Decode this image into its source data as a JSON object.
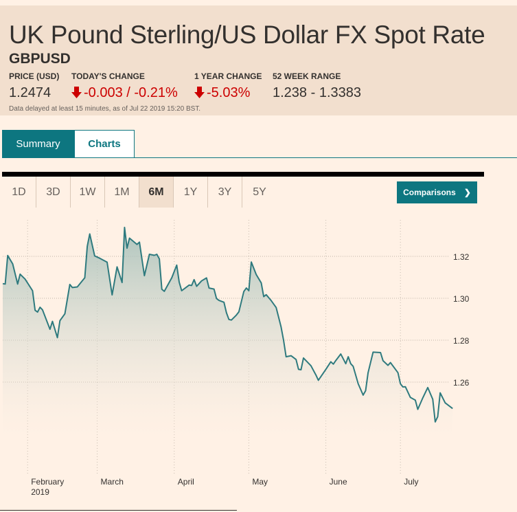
{
  "header": {
    "title": "UK Pound Sterling/US Dollar FX Spot Rate",
    "symbol": "GBPUSD",
    "stats": [
      {
        "label": "PRICE (USD)",
        "value": "1.2474"
      },
      {
        "label": "TODAY'S CHANGE",
        "value": "-0.003 / -0.21%",
        "direction": "down"
      },
      {
        "label": "1 YEAR CHANGE",
        "value": "-5.03%",
        "direction": "down"
      },
      {
        "label": "52 WEEK RANGE",
        "value": "1.238 - 1.3383"
      }
    ],
    "note": "Data delayed at least 15 minutes, as of Jul 22 2019 15:20 BST."
  },
  "tabs": [
    {
      "label": "Summary",
      "active": true
    },
    {
      "label": "Charts",
      "active": false
    }
  ],
  "ranges": [
    "1D",
    "3D",
    "1W",
    "1M",
    "6M",
    "1Y",
    "3Y",
    "5Y"
  ],
  "active_range": "6M",
  "comparisons_label": "Comparisons",
  "colors": {
    "accent": "#0d7680",
    "negative": "#cc0000",
    "header_bg": "#f2dfce",
    "page_bg": "#fff1e5",
    "line": "#2e7a7e"
  },
  "chart_data": {
    "type": "area",
    "ylim": [
      1.236,
      1.336
    ],
    "grid": true,
    "yticks": [
      "1.26",
      "1.28",
      "1.30",
      "1.32"
    ],
    "xticks": [
      {
        "date": "2019-02-01",
        "label": "February",
        "sub": "2019"
      },
      {
        "date": "2019-03-01",
        "label": "March"
      },
      {
        "date": "2019-04-01",
        "label": "April"
      },
      {
        "date": "2019-05-01",
        "label": "May"
      },
      {
        "date": "2019-06-01",
        "label": "June"
      },
      {
        "date": "2019-07-01",
        "label": "July"
      }
    ],
    "points": [
      [
        "2019-01-22",
        1.307
      ],
      [
        "2019-01-23",
        1.3068
      ],
      [
        "2019-01-24",
        1.3204
      ],
      [
        "2019-01-26",
        1.3164
      ],
      [
        "2019-01-28",
        1.3068
      ],
      [
        "2019-01-29",
        1.3115
      ],
      [
        "2019-01-31",
        1.3091
      ],
      [
        "2019-02-03",
        1.3036
      ],
      [
        "2019-02-04",
        1.2943
      ],
      [
        "2019-02-05",
        1.2934
      ],
      [
        "2019-02-06",
        1.2957
      ],
      [
        "2019-02-07",
        1.2945
      ],
      [
        "2019-02-10",
        1.2852
      ],
      [
        "2019-02-11",
        1.289
      ],
      [
        "2019-02-13",
        1.2812
      ],
      [
        "2019-02-14",
        1.2893
      ],
      [
        "2019-02-16",
        1.2926
      ],
      [
        "2019-02-18",
        1.3066
      ],
      [
        "2019-02-19",
        1.3051
      ],
      [
        "2019-02-21",
        1.3054
      ],
      [
        "2019-02-24",
        1.3098
      ],
      [
        "2019-02-25",
        1.3248
      ],
      [
        "2019-02-26",
        1.3307
      ],
      [
        "2019-02-28",
        1.3202
      ],
      [
        "2019-03-02",
        1.3191
      ],
      [
        "2019-03-05",
        1.3172
      ],
      [
        "2019-03-07",
        1.3016
      ],
      [
        "2019-03-09",
        1.315
      ],
      [
        "2019-03-11",
        1.3075
      ],
      [
        "2019-03-12",
        1.3338
      ],
      [
        "2019-03-13",
        1.3239
      ],
      [
        "2019-03-14",
        1.3287
      ],
      [
        "2019-03-17",
        1.3257
      ],
      [
        "2019-03-18",
        1.3268
      ],
      [
        "2019-03-20",
        1.3108
      ],
      [
        "2019-03-22",
        1.321
      ],
      [
        "2019-03-24",
        1.3205
      ],
      [
        "2019-03-25",
        1.321
      ],
      [
        "2019-03-26",
        1.3188
      ],
      [
        "2019-03-27",
        1.3043
      ],
      [
        "2019-03-28",
        1.3033
      ],
      [
        "2019-03-31",
        1.3098
      ],
      [
        "2019-04-02",
        1.3158
      ],
      [
        "2019-04-03",
        1.3077
      ],
      [
        "2019-04-04",
        1.3036
      ],
      [
        "2019-04-07",
        1.3063
      ],
      [
        "2019-04-08",
        1.3061
      ],
      [
        "2019-04-09",
        1.3089
      ],
      [
        "2019-04-10",
        1.3057
      ],
      [
        "2019-04-12",
        1.3083
      ],
      [
        "2019-04-14",
        1.3097
      ],
      [
        "2019-04-15",
        1.3049
      ],
      [
        "2019-04-17",
        1.3044
      ],
      [
        "2019-04-18",
        1.2999
      ],
      [
        "2019-04-19",
        1.299
      ],
      [
        "2019-04-21",
        1.2981
      ],
      [
        "2019-04-22",
        1.2931
      ],
      [
        "2019-04-23",
        1.2899
      ],
      [
        "2019-04-24",
        1.2896
      ],
      [
        "2019-04-26",
        1.292
      ],
      [
        "2019-04-27",
        1.2935
      ],
      [
        "2019-04-29",
        1.3032
      ],
      [
        "2019-04-30",
        1.3049
      ],
      [
        "2019-05-01",
        1.3036
      ],
      [
        "2019-05-02",
        1.3173
      ],
      [
        "2019-05-04",
        1.3113
      ],
      [
        "2019-05-06",
        1.3073
      ],
      [
        "2019-05-07",
        1.3008
      ],
      [
        "2019-05-08",
        1.3017
      ],
      [
        "2019-05-10",
        1.2989
      ],
      [
        "2019-05-12",
        1.2956
      ],
      [
        "2019-05-14",
        1.2863
      ],
      [
        "2019-05-15",
        1.2798
      ],
      [
        "2019-05-16",
        1.2721
      ],
      [
        "2019-05-18",
        1.2726
      ],
      [
        "2019-05-20",
        1.2708
      ],
      [
        "2019-05-21",
        1.2661
      ],
      [
        "2019-05-22",
        1.2659
      ],
      [
        "2019-05-23",
        1.2715
      ],
      [
        "2019-05-26",
        1.2678
      ],
      [
        "2019-05-28",
        1.2634
      ],
      [
        "2019-05-29",
        1.2609
      ],
      [
        "2019-06-01",
        1.2661
      ],
      [
        "2019-06-03",
        1.2697
      ],
      [
        "2019-06-04",
        1.2686
      ],
      [
        "2019-06-05",
        1.2703
      ],
      [
        "2019-06-07",
        1.2734
      ],
      [
        "2019-06-09",
        1.2688
      ],
      [
        "2019-06-10",
        1.2721
      ],
      [
        "2019-06-11",
        1.2688
      ],
      [
        "2019-06-12",
        1.2675
      ],
      [
        "2019-06-14",
        1.2592
      ],
      [
        "2019-06-16",
        1.2538
      ],
      [
        "2019-06-17",
        1.2559
      ],
      [
        "2019-06-18",
        1.2645
      ],
      [
        "2019-06-20",
        1.2743
      ],
      [
        "2019-06-23",
        1.2741
      ],
      [
        "2019-06-24",
        1.2702
      ],
      [
        "2019-06-26",
        1.268
      ],
      [
        "2019-06-27",
        1.2693
      ],
      [
        "2019-06-30",
        1.2645
      ],
      [
        "2019-07-01",
        1.2592
      ],
      [
        "2019-07-02",
        1.2577
      ],
      [
        "2019-07-03",
        1.2578
      ],
      [
        "2019-07-05",
        1.2527
      ],
      [
        "2019-07-07",
        1.2514
      ],
      [
        "2019-07-08",
        1.247
      ],
      [
        "2019-07-10",
        1.2525
      ],
      [
        "2019-07-12",
        1.2574
      ],
      [
        "2019-07-14",
        1.2518
      ],
      [
        "2019-07-15",
        1.241
      ],
      [
        "2019-07-16",
        1.2435
      ],
      [
        "2019-07-17",
        1.2549
      ],
      [
        "2019-07-19",
        1.2501
      ],
      [
        "2019-07-22",
        1.2474
      ]
    ]
  }
}
